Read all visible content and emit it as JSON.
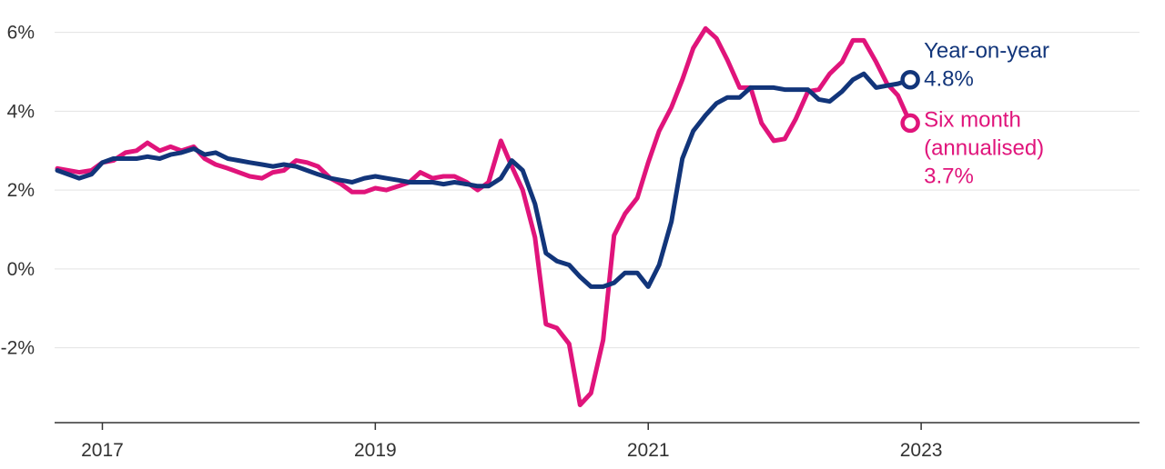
{
  "chart_data": {
    "type": "line",
    "title": "",
    "xlabel": "",
    "ylabel": "",
    "xlim": [
      2016.65,
      2024.6
    ],
    "ylim": [
      -3.9,
      6.5
    ],
    "y_ticks": [
      6,
      4,
      2,
      0,
      -2
    ],
    "y_tick_labels": [
      "6%",
      "4%",
      "2%",
      "0%",
      "-2%"
    ],
    "x_ticks": [
      2017,
      2019,
      2021,
      2023
    ],
    "x_tick_labels": [
      "2017",
      "2019",
      "2021",
      "2023"
    ],
    "grid": "horizontal",
    "legend": "direct labels at line ends",
    "series": [
      {
        "name": "Year-on-year",
        "color": "#12357a",
        "end_value_label": "4.8%",
        "points": [
          [
            2016.67,
            2.5
          ],
          [
            2016.83,
            2.3
          ],
          [
            2016.92,
            2.4
          ],
          [
            2017.0,
            2.7
          ],
          [
            2017.08,
            2.8
          ],
          [
            2017.17,
            2.8
          ],
          [
            2017.25,
            2.8
          ],
          [
            2017.33,
            2.85
          ],
          [
            2017.42,
            2.8
          ],
          [
            2017.5,
            2.9
          ],
          [
            2017.58,
            2.95
          ],
          [
            2017.67,
            3.05
          ],
          [
            2017.75,
            2.9
          ],
          [
            2017.83,
            2.95
          ],
          [
            2017.92,
            2.8
          ],
          [
            2018.0,
            2.75
          ],
          [
            2018.08,
            2.7
          ],
          [
            2018.17,
            2.65
          ],
          [
            2018.25,
            2.6
          ],
          [
            2018.33,
            2.65
          ],
          [
            2018.42,
            2.6
          ],
          [
            2018.5,
            2.5
          ],
          [
            2018.58,
            2.4
          ],
          [
            2018.67,
            2.3
          ],
          [
            2018.75,
            2.25
          ],
          [
            2018.83,
            2.2
          ],
          [
            2018.92,
            2.3
          ],
          [
            2019.0,
            2.35
          ],
          [
            2019.08,
            2.3
          ],
          [
            2019.17,
            2.25
          ],
          [
            2019.25,
            2.2
          ],
          [
            2019.33,
            2.2
          ],
          [
            2019.42,
            2.2
          ],
          [
            2019.5,
            2.15
          ],
          [
            2019.58,
            2.2
          ],
          [
            2019.67,
            2.15
          ],
          [
            2019.75,
            2.1
          ],
          [
            2019.83,
            2.1
          ],
          [
            2019.92,
            2.3
          ],
          [
            2020.0,
            2.75
          ],
          [
            2020.08,
            2.5
          ],
          [
            2020.17,
            1.65
          ],
          [
            2020.25,
            0.4
          ],
          [
            2020.33,
            0.2
          ],
          [
            2020.42,
            0.1
          ],
          [
            2020.5,
            -0.2
          ],
          [
            2020.58,
            -0.45
          ],
          [
            2020.67,
            -0.45
          ],
          [
            2020.75,
            -0.35
          ],
          [
            2020.83,
            -0.1
          ],
          [
            2020.92,
            -0.1
          ],
          [
            2021.0,
            -0.45
          ],
          [
            2021.08,
            0.1
          ],
          [
            2021.17,
            1.2
          ],
          [
            2021.25,
            2.8
          ],
          [
            2021.33,
            3.5
          ],
          [
            2021.42,
            3.9
          ],
          [
            2021.5,
            4.2
          ],
          [
            2021.58,
            4.35
          ],
          [
            2021.67,
            4.35
          ],
          [
            2021.75,
            4.6
          ],
          [
            2021.83,
            4.6
          ],
          [
            2021.92,
            4.6
          ],
          [
            2022.0,
            4.55
          ],
          [
            2022.08,
            4.55
          ],
          [
            2022.17,
            4.55
          ],
          [
            2022.25,
            4.3
          ],
          [
            2022.33,
            4.25
          ],
          [
            2022.42,
            4.5
          ],
          [
            2022.5,
            4.8
          ],
          [
            2022.58,
            4.95
          ],
          [
            2022.67,
            4.6
          ],
          [
            2022.75,
            4.65
          ],
          [
            2022.83,
            4.7
          ],
          [
            2022.92,
            4.8
          ]
        ]
      },
      {
        "name": "Six month\n(annualised)",
        "color": "#e0147b",
        "end_value_label": "3.7%",
        "points": [
          [
            2016.67,
            2.55
          ],
          [
            2016.83,
            2.45
          ],
          [
            2016.92,
            2.5
          ],
          [
            2017.0,
            2.7
          ],
          [
            2017.08,
            2.75
          ],
          [
            2017.17,
            2.95
          ],
          [
            2017.25,
            3.0
          ],
          [
            2017.33,
            3.2
          ],
          [
            2017.42,
            3.0
          ],
          [
            2017.5,
            3.1
          ],
          [
            2017.58,
            3.0
          ],
          [
            2017.67,
            3.1
          ],
          [
            2017.75,
            2.8
          ],
          [
            2017.83,
            2.65
          ],
          [
            2017.92,
            2.55
          ],
          [
            2018.0,
            2.45
          ],
          [
            2018.08,
            2.35
          ],
          [
            2018.17,
            2.3
          ],
          [
            2018.25,
            2.45
          ],
          [
            2018.33,
            2.5
          ],
          [
            2018.42,
            2.75
          ],
          [
            2018.5,
            2.7
          ],
          [
            2018.58,
            2.6
          ],
          [
            2018.67,
            2.3
          ],
          [
            2018.75,
            2.15
          ],
          [
            2018.83,
            1.95
          ],
          [
            2018.92,
            1.95
          ],
          [
            2019.0,
            2.05
          ],
          [
            2019.08,
            2.0
          ],
          [
            2019.17,
            2.1
          ],
          [
            2019.25,
            2.2
          ],
          [
            2019.33,
            2.45
          ],
          [
            2019.42,
            2.3
          ],
          [
            2019.5,
            2.35
          ],
          [
            2019.58,
            2.35
          ],
          [
            2019.67,
            2.2
          ],
          [
            2019.75,
            2.0
          ],
          [
            2019.83,
            2.2
          ],
          [
            2019.92,
            3.25
          ],
          [
            2020.0,
            2.6
          ],
          [
            2020.08,
            2.0
          ],
          [
            2020.17,
            0.8
          ],
          [
            2020.25,
            -1.4
          ],
          [
            2020.33,
            -1.5
          ],
          [
            2020.42,
            -1.9
          ],
          [
            2020.5,
            -3.45
          ],
          [
            2020.58,
            -3.15
          ],
          [
            2020.67,
            -1.8
          ],
          [
            2020.75,
            0.85
          ],
          [
            2020.83,
            1.4
          ],
          [
            2020.92,
            1.8
          ],
          [
            2021.0,
            2.7
          ],
          [
            2021.08,
            3.5
          ],
          [
            2021.17,
            4.1
          ],
          [
            2021.25,
            4.8
          ],
          [
            2021.33,
            5.6
          ],
          [
            2021.42,
            6.1
          ],
          [
            2021.5,
            5.85
          ],
          [
            2021.58,
            5.3
          ],
          [
            2021.67,
            4.6
          ],
          [
            2021.75,
            4.6
          ],
          [
            2021.83,
            3.7
          ],
          [
            2021.92,
            3.25
          ],
          [
            2022.0,
            3.3
          ],
          [
            2022.08,
            3.8
          ],
          [
            2022.17,
            4.5
          ],
          [
            2022.25,
            4.55
          ],
          [
            2022.33,
            4.95
          ],
          [
            2022.42,
            5.25
          ],
          [
            2022.5,
            5.8
          ],
          [
            2022.58,
            5.8
          ],
          [
            2022.67,
            5.25
          ],
          [
            2022.75,
            4.7
          ],
          [
            2022.83,
            4.4
          ],
          [
            2022.92,
            3.7
          ]
        ]
      }
    ]
  }
}
